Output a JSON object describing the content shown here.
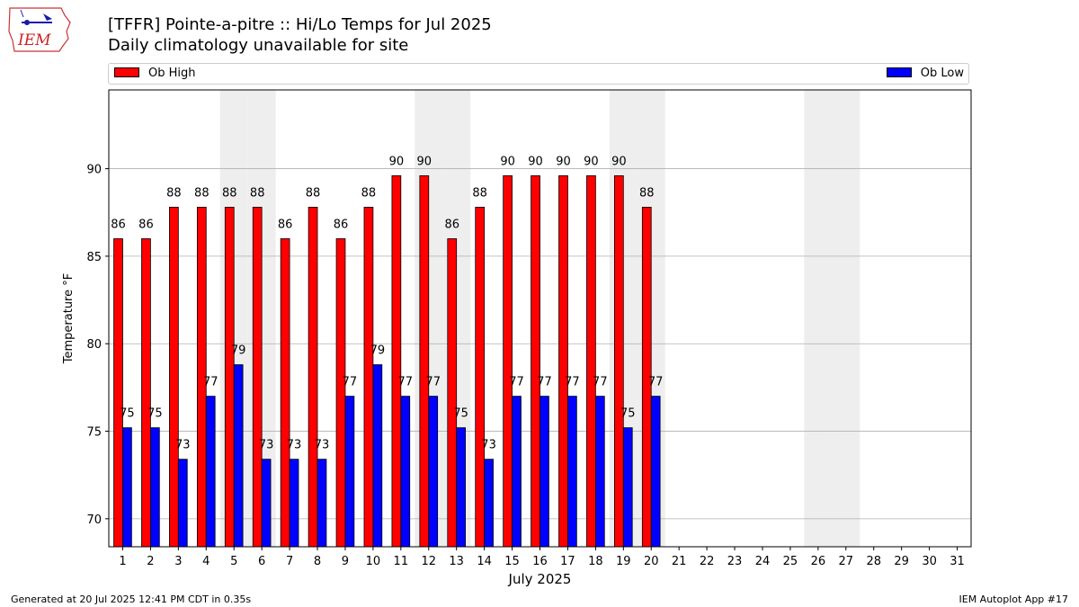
{
  "header": {
    "title_line1": "[TFFR] Pointe-a-pitre :: Hi/Lo Temps for Jul 2025",
    "title_line2": "Daily climatology unavailable for site"
  },
  "logo": {
    "text": "IEM"
  },
  "footer": {
    "left": "Generated at 20 Jul 2025 12:41 PM CDT in 0.35s",
    "right": "IEM Autoplot App #17"
  },
  "colors": {
    "high": "#ff0000",
    "low": "#0000ff",
    "weekend": "#eeeeee",
    "grid": "#b0b0b0"
  },
  "chart_data": {
    "type": "bar",
    "xlabel": "July 2025",
    "ylabel": "Temperature °F",
    "ylim": [
      68.4,
      94.5
    ],
    "yticks": [
      70,
      75,
      80,
      85,
      90
    ],
    "grid": true,
    "legend_position": "top",
    "categories": [
      "1",
      "2",
      "3",
      "4",
      "5",
      "6",
      "7",
      "8",
      "9",
      "10",
      "11",
      "12",
      "13",
      "14",
      "15",
      "16",
      "17",
      "18",
      "19",
      "20",
      "21",
      "22",
      "23",
      "24",
      "25",
      "26",
      "27",
      "28",
      "29",
      "30",
      "31"
    ],
    "weekend_days": [
      5,
      6,
      12,
      13,
      19,
      20,
      26,
      27
    ],
    "series": [
      {
        "name": "Ob High",
        "color": "#ff0000",
        "values": [
          86,
          86,
          87.8,
          87.8,
          87.8,
          87.8,
          86,
          87.8,
          86,
          87.8,
          89.6,
          89.6,
          86,
          87.8,
          89.6,
          89.6,
          89.6,
          89.6,
          89.6,
          87.8,
          null,
          null,
          null,
          null,
          null,
          null,
          null,
          null,
          null,
          null,
          null
        ],
        "labels": [
          "86",
          "86",
          "88",
          "88",
          "88",
          "88",
          "86",
          "88",
          "86",
          "88",
          "90",
          "90",
          "86",
          "88",
          "90",
          "90",
          "90",
          "90",
          "90",
          "88",
          "",
          "",
          "",
          "",
          "",
          "",
          "",
          "",
          "",
          "",
          ""
        ]
      },
      {
        "name": "Ob Low",
        "color": "#0000ff",
        "values": [
          75.2,
          75.2,
          73.4,
          77,
          78.8,
          73.4,
          73.4,
          73.4,
          77,
          78.8,
          77,
          77,
          75.2,
          73.4,
          77,
          77,
          77,
          77,
          75.2,
          77,
          null,
          null,
          null,
          null,
          null,
          null,
          null,
          null,
          null,
          null,
          null
        ],
        "labels": [
          "75",
          "75",
          "73",
          "77",
          "79",
          "73",
          "73",
          "73",
          "77",
          "79",
          "77",
          "77",
          "75",
          "73",
          "77",
          "77",
          "77",
          "77",
          "75",
          "77",
          "",
          "",
          "",
          "",
          "",
          "",
          "",
          "",
          "",
          "",
          ""
        ]
      }
    ]
  }
}
